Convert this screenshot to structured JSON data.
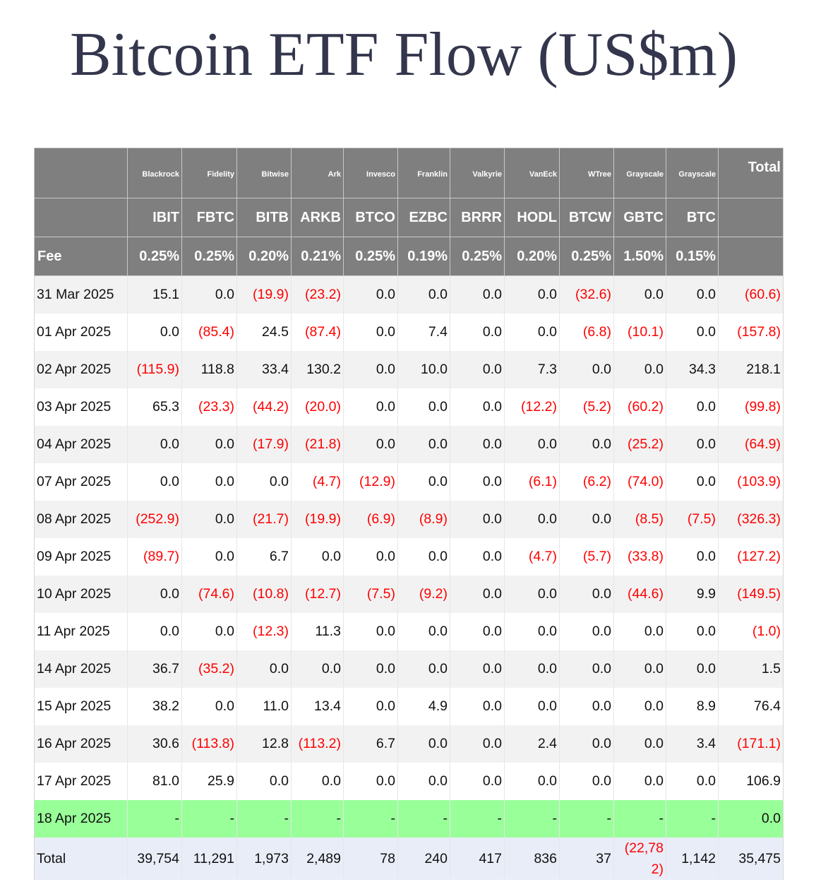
{
  "title": "Bitcoin ETF Flow (US$m)",
  "header": {
    "issuers": [
      "Blackrock",
      "Fidelity",
      "Bitwise",
      "Ark",
      "Invesco",
      "Franklin",
      "Valkyrie",
      "VanEck",
      "WTree",
      "Grayscale",
      "Grayscale"
    ],
    "total_label": "Total",
    "tickers": [
      "IBIT",
      "FBTC",
      "BITB",
      "ARKB",
      "BTCO",
      "EZBC",
      "BRRR",
      "HODL",
      "BTCW",
      "GBTC",
      "BTC"
    ],
    "fee_label": "Fee",
    "fees": [
      "0.25%",
      "0.25%",
      "0.20%",
      "0.21%",
      "0.25%",
      "0.19%",
      "0.25%",
      "0.20%",
      "0.25%",
      "1.50%",
      "0.15%"
    ]
  },
  "colors": {
    "negative": "#ff0000",
    "header_bg": "#7f7f7f",
    "pending_row": "#99ff99",
    "totals_row": "#e9edf8",
    "title": "#33364c"
  },
  "rows": [
    {
      "date": "31 Mar 2025",
      "values": [
        "15.1",
        "0.0",
        "(19.9)",
        "(23.2)",
        "0.0",
        "0.0",
        "0.0",
        "0.0",
        "(32.6)",
        "0.0",
        "0.0"
      ],
      "total": "(60.6)"
    },
    {
      "date": "01 Apr 2025",
      "values": [
        "0.0",
        "(85.4)",
        "24.5",
        "(87.4)",
        "0.0",
        "7.4",
        "0.0",
        "0.0",
        "(6.8)",
        "(10.1)",
        "0.0"
      ],
      "total": "(157.8)"
    },
    {
      "date": "02 Apr 2025",
      "values": [
        "(115.9)",
        "118.8",
        "33.4",
        "130.2",
        "0.0",
        "10.0",
        "0.0",
        "7.3",
        "0.0",
        "0.0",
        "34.3"
      ],
      "total": "218.1"
    },
    {
      "date": "03 Apr 2025",
      "values": [
        "65.3",
        "(23.3)",
        "(44.2)",
        "(20.0)",
        "0.0",
        "0.0",
        "0.0",
        "(12.2)",
        "(5.2)",
        "(60.2)",
        "0.0"
      ],
      "total": "(99.8)"
    },
    {
      "date": "04 Apr 2025",
      "values": [
        "0.0",
        "0.0",
        "(17.9)",
        "(21.8)",
        "0.0",
        "0.0",
        "0.0",
        "0.0",
        "0.0",
        "(25.2)",
        "0.0"
      ],
      "total": "(64.9)"
    },
    {
      "date": "07 Apr 2025",
      "values": [
        "0.0",
        "0.0",
        "0.0",
        "(4.7)",
        "(12.9)",
        "0.0",
        "0.0",
        "(6.1)",
        "(6.2)",
        "(74.0)",
        "0.0"
      ],
      "total": "(103.9)"
    },
    {
      "date": "08 Apr 2025",
      "values": [
        "(252.9)",
        "0.0",
        "(21.7)",
        "(19.9)",
        "(6.9)",
        "(8.9)",
        "0.0",
        "0.0",
        "0.0",
        "(8.5)",
        "(7.5)"
      ],
      "total": "(326.3)"
    },
    {
      "date": "09 Apr 2025",
      "values": [
        "(89.7)",
        "0.0",
        "6.7",
        "0.0",
        "0.0",
        "0.0",
        "0.0",
        "(4.7)",
        "(5.7)",
        "(33.8)",
        "0.0"
      ],
      "total": "(127.2)"
    },
    {
      "date": "10 Apr 2025",
      "values": [
        "0.0",
        "(74.6)",
        "(10.8)",
        "(12.7)",
        "(7.5)",
        "(9.2)",
        "0.0",
        "0.0",
        "0.0",
        "(44.6)",
        "9.9"
      ],
      "total": "(149.5)"
    },
    {
      "date": "11 Apr 2025",
      "values": [
        "0.0",
        "0.0",
        "(12.3)",
        "11.3",
        "0.0",
        "0.0",
        "0.0",
        "0.0",
        "0.0",
        "0.0",
        "0.0"
      ],
      "total": "(1.0)"
    },
    {
      "date": "14 Apr 2025",
      "values": [
        "36.7",
        "(35.2)",
        "0.0",
        "0.0",
        "0.0",
        "0.0",
        "0.0",
        "0.0",
        "0.0",
        "0.0",
        "0.0"
      ],
      "total": "1.5"
    },
    {
      "date": "15 Apr 2025",
      "values": [
        "38.2",
        "0.0",
        "11.0",
        "13.4",
        "0.0",
        "4.9",
        "0.0",
        "0.0",
        "0.0",
        "0.0",
        "8.9"
      ],
      "total": "76.4"
    },
    {
      "date": "16 Apr 2025",
      "values": [
        "30.6",
        "(113.8)",
        "12.8",
        "(113.2)",
        "6.7",
        "0.0",
        "0.0",
        "2.4",
        "0.0",
        "0.0",
        "3.4"
      ],
      "total": "(171.1)"
    },
    {
      "date": "17 Apr 2025",
      "values": [
        "81.0",
        "25.9",
        "0.0",
        "0.0",
        "0.0",
        "0.0",
        "0.0",
        "0.0",
        "0.0",
        "0.0",
        "0.0"
      ],
      "total": "106.9"
    },
    {
      "date": "18 Apr 2025",
      "values": [
        "-",
        "-",
        "-",
        "-",
        "-",
        "-",
        "-",
        "-",
        "-",
        "-",
        "-"
      ],
      "total": "0.0",
      "pending": true
    }
  ],
  "totals": {
    "label": "Total",
    "values": [
      "39,754",
      "11,291",
      "1,973",
      "2,489",
      "78",
      "240",
      "417",
      "836",
      "37",
      "(22,782)",
      "1,142"
    ],
    "total": "35,475"
  }
}
